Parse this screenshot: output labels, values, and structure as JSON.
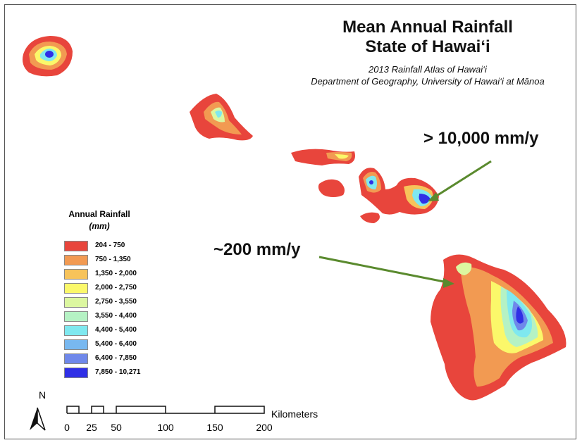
{
  "title": {
    "line1": "Mean Annual Rainfall",
    "line2": "State of Hawai‘i",
    "sub1": "2013 Rainfall Atlas of Hawai‘i",
    "sub2": "Department of Geography, University of Hawai‘i at Mānoa"
  },
  "callouts": {
    "high": "> 10,000 mm/y",
    "low": "~200 mm/y",
    "arrow_color": "#5a8a2e"
  },
  "legend": {
    "title": "Annual Rainfall",
    "units": "(mm)",
    "classes": [
      {
        "label": "204 - 750",
        "color": "#e8453c"
      },
      {
        "label": "750 - 1,350",
        "color": "#f29a52"
      },
      {
        "label": "1,350 - 2,000",
        "color": "#f7c35a"
      },
      {
        "label": "2,000 - 2,750",
        "color": "#fbf86a"
      },
      {
        "label": "2,750 - 3,550",
        "color": "#dcf7a0"
      },
      {
        "label": "3,550 - 4,400",
        "color": "#b5f2c4"
      },
      {
        "label": "4,400 - 5,400",
        "color": "#7fe8ef"
      },
      {
        "label": "5,400 - 6,400",
        "color": "#78b8f0"
      },
      {
        "label": "6,400 - 7,850",
        "color": "#6f88ea"
      },
      {
        "label": "7,850 - 10,271",
        "color": "#2f2fe6"
      }
    ]
  },
  "north_arrow": {
    "label": "N"
  },
  "scale_bar": {
    "units": "Kilometers",
    "ticks": [
      "0",
      "25",
      "50",
      "100",
      "150",
      "200"
    ]
  }
}
